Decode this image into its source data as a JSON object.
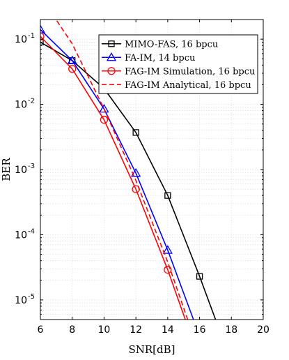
{
  "chart_data": {
    "type": "line",
    "xlabel": "SNR[dB]",
    "ylabel": "BER",
    "xlim": [
      6,
      20
    ],
    "ylim": [
      5e-06,
      0.2
    ],
    "yscale": "log",
    "xticks": [
      6,
      8,
      10,
      12,
      14,
      16,
      18,
      20
    ],
    "yticks": [
      {
        "value": 1e-05,
        "base": "10",
        "exp": "-5"
      },
      {
        "value": 0.0001,
        "base": "10",
        "exp": "-4"
      },
      {
        "value": 0.001,
        "base": "10",
        "exp": "-3"
      },
      {
        "value": 0.01,
        "base": "10",
        "exp": "-2"
      },
      {
        "value": 0.1,
        "base": "10",
        "exp": "-1"
      }
    ],
    "grid": true,
    "minor_grid": true,
    "legend_position": "top-right",
    "series": [
      {
        "name": "MIMO-FAS, 16 bpcu",
        "color": "#000000",
        "dash": "solid",
        "marker": "square",
        "x": [
          6,
          8,
          10,
          12,
          14,
          16,
          18
        ],
        "y": [
          0.09,
          0.047,
          0.0175,
          0.0037,
          0.0004,
          2.3e-05,
          1.1e-06
        ]
      },
      {
        "name": "FA-IM, 14 bpcu",
        "color": "#0000ff",
        "dash": "solid",
        "marker": "triangle",
        "x": [
          6,
          8,
          10,
          12,
          14,
          16
        ],
        "y": [
          0.14,
          0.047,
          0.0085,
          0.00088,
          5.8e-05,
          2.8e-06
        ]
      },
      {
        "name": "FAG-IM Simulation, 16 bpcu",
        "color": "#ff0000",
        "dash": "solid",
        "marker": "circle",
        "x": [
          6,
          8,
          10,
          12,
          14,
          16
        ],
        "y": [
          0.11,
          0.035,
          0.0058,
          0.0005,
          2.9e-05,
          1.2e-06
        ]
      },
      {
        "name": "FAG-IM Analytical, 16 bpcu",
        "color": "#ff0000",
        "dash": "dashed",
        "marker": "none",
        "x": [
          6.5,
          8,
          10,
          12,
          14,
          16
        ],
        "y": [
          0.3,
          0.085,
          0.0085,
          0.00068,
          3.8e-05,
          1.5e-06
        ]
      }
    ]
  }
}
